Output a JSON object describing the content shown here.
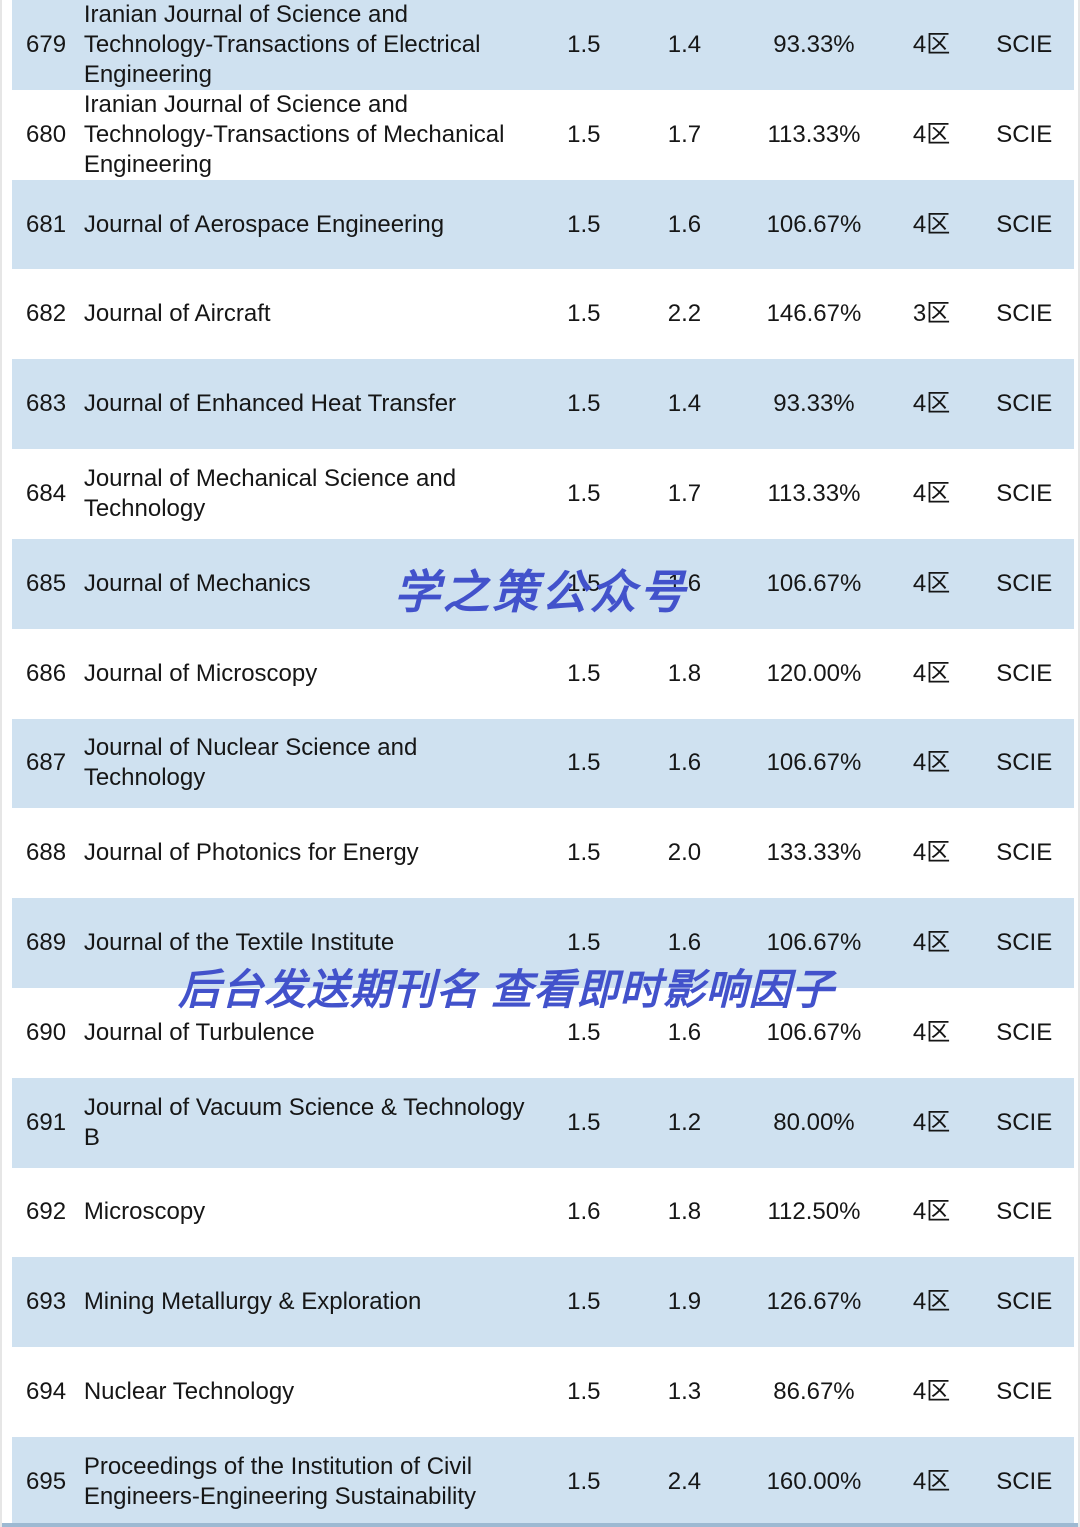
{
  "table": {
    "rows": [
      {
        "rank": "679",
        "name": "Iranian Journal of Science and Technology-Transactions of Electrical Engineering",
        "if": "1.5",
        "if_rt": "1.4",
        "pct": "93.33%",
        "zone": "4区",
        "index": "SCIE"
      },
      {
        "rank": "680",
        "name": "Iranian Journal of Science and Technology-Transactions of Mechanical Engineering",
        "if": "1.5",
        "if_rt": "1.7",
        "pct": "113.33%",
        "zone": "4区",
        "index": "SCIE"
      },
      {
        "rank": "681",
        "name": "Journal of Aerospace Engineering",
        "if": "1.5",
        "if_rt": "1.6",
        "pct": "106.67%",
        "zone": "4区",
        "index": "SCIE"
      },
      {
        "rank": "682",
        "name": "Journal of Aircraft",
        "if": "1.5",
        "if_rt": "2.2",
        "pct": "146.67%",
        "zone": "3区",
        "index": "SCIE"
      },
      {
        "rank": "683",
        "name": "Journal of Enhanced Heat Transfer",
        "if": "1.5",
        "if_rt": "1.4",
        "pct": "93.33%",
        "zone": "4区",
        "index": "SCIE"
      },
      {
        "rank": "684",
        "name": "Journal of Mechanical Science and Technology",
        "if": "1.5",
        "if_rt": "1.7",
        "pct": "113.33%",
        "zone": "4区",
        "index": "SCIE"
      },
      {
        "rank": "685",
        "name": "Journal of Mechanics",
        "if": "1.5",
        "if_rt": "1.6",
        "pct": "106.67%",
        "zone": "4区",
        "index": "SCIE"
      },
      {
        "rank": "686",
        "name": "Journal of Microscopy",
        "if": "1.5",
        "if_rt": "1.8",
        "pct": "120.00%",
        "zone": "4区",
        "index": "SCIE"
      },
      {
        "rank": "687",
        "name": "Journal of Nuclear Science and Technology",
        "if": "1.5",
        "if_rt": "1.6",
        "pct": "106.67%",
        "zone": "4区",
        "index": "SCIE"
      },
      {
        "rank": "688",
        "name": "Journal of Photonics for Energy",
        "if": "1.5",
        "if_rt": "2.0",
        "pct": "133.33%",
        "zone": "4区",
        "index": "SCIE"
      },
      {
        "rank": "689",
        "name": "Journal of the Textile Institute",
        "if": "1.5",
        "if_rt": "1.6",
        "pct": "106.67%",
        "zone": "4区",
        "index": "SCIE"
      },
      {
        "rank": "690",
        "name": "Journal of Turbulence",
        "if": "1.5",
        "if_rt": "1.6",
        "pct": "106.67%",
        "zone": "4区",
        "index": "SCIE"
      },
      {
        "rank": "691",
        "name": "Journal of Vacuum Science & Technology B",
        "if": "1.5",
        "if_rt": "1.2",
        "pct": "80.00%",
        "zone": "4区",
        "index": "SCIE"
      },
      {
        "rank": "692",
        "name": "Microscopy",
        "if": "1.6",
        "if_rt": "1.8",
        "pct": "112.50%",
        "zone": "4区",
        "index": "SCIE"
      },
      {
        "rank": "693",
        "name": "Mining Metallurgy & Exploration",
        "if": "1.5",
        "if_rt": "1.9",
        "pct": "126.67%",
        "zone": "4区",
        "index": "SCIE"
      },
      {
        "rank": "694",
        "name": "Nuclear Technology",
        "if": "1.5",
        "if_rt": "1.3",
        "pct": "86.67%",
        "zone": "4区",
        "index": "SCIE"
      },
      {
        "rank": "695",
        "name": "Proceedings of the Institution of Civil Engineers-Engineering Sustainability",
        "if": "1.5",
        "if_rt": "2.4",
        "pct": "160.00%",
        "zone": "4区",
        "index": "SCIE"
      }
    ]
  },
  "watermarks": {
    "center": "学之策公众号",
    "lower": "后台发送期刊名 查看即时影响因子"
  },
  "colors": {
    "stripe": "#cfe1f0",
    "watermark_blue": "#4252cb",
    "text": "#161616"
  }
}
